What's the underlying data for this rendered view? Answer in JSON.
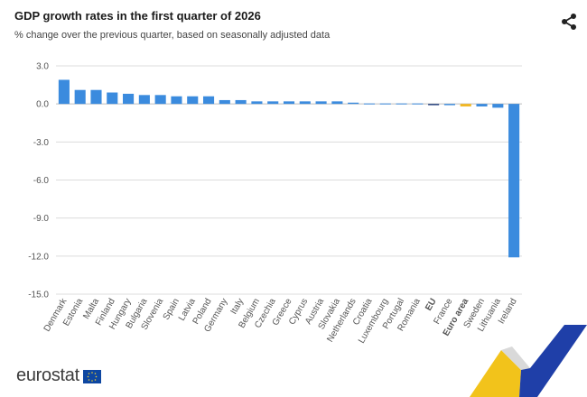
{
  "header": {
    "title": "GDP growth rates in the first quarter of 2026",
    "subtitle": "% change over the previous quarter, based on seasonally adjusted data",
    "share_icon": "share-icon"
  },
  "footer": {
    "logo_text": "eurostat",
    "flag_icon": "eu-flag-icon"
  },
  "colors": {
    "bar": "#3b8bde",
    "eu": "#1f3b7a",
    "euro_area": "#f2b823",
    "grid": "#dcdcdc",
    "axis_text": "#555555"
  },
  "chart_data": {
    "type": "bar",
    "title": "GDP growth rates in the first quarter of 2026",
    "subtitle": "% change over the previous quarter, based on seasonally adjusted data",
    "xlabel": "",
    "ylabel": "",
    "ylim": [
      -15,
      3
    ],
    "yticks": [
      "3.0",
      "0.0",
      "-3.0",
      "-6.0",
      "-9.0",
      "-12.0",
      "-15.0"
    ],
    "ytick_values": [
      3,
      0,
      -3,
      -6,
      -9,
      -12,
      -15
    ],
    "grid": true,
    "legend": "none",
    "categories": [
      "Denmark",
      "Estonia",
      "Malta",
      "Finland",
      "Hungary",
      "Bulgaria",
      "Slovenia",
      "Spain",
      "Latvia",
      "Poland",
      "Germany",
      "Italy",
      "Belgium",
      "Czechia",
      "Greece",
      "Cyprus",
      "Austria",
      "Slovakia",
      "Netherlands",
      "Croatia",
      "Luxembourg",
      "Portugal",
      "Romania",
      "EU",
      "France",
      "Euro area",
      "Sweden",
      "Lithuania",
      "Ireland"
    ],
    "values": [
      1.9,
      1.1,
      1.1,
      0.9,
      0.8,
      0.7,
      0.7,
      0.6,
      0.6,
      0.6,
      0.3,
      0.3,
      0.2,
      0.2,
      0.2,
      0.2,
      0.2,
      0.2,
      0.1,
      0.0,
      0.0,
      0.0,
      0.0,
      -0.1,
      -0.1,
      -0.2,
      -0.2,
      -0.3,
      -12.1
    ],
    "bold_categories": [
      "EU",
      "Euro area"
    ]
  }
}
